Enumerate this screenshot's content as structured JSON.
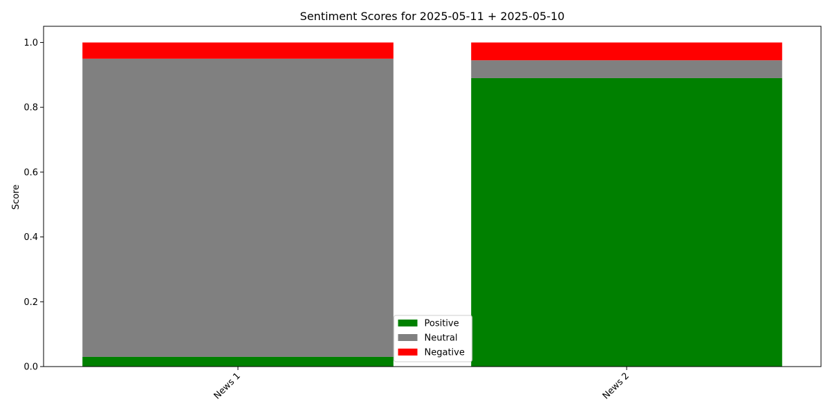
{
  "chart_data": {
    "type": "bar",
    "stacked": true,
    "title": "Sentiment Scores for 2025-05-11 + 2025-05-10",
    "xlabel": "",
    "ylabel": "Score",
    "categories": [
      "News 1",
      "News 2"
    ],
    "ylim": [
      0,
      1.05
    ],
    "yticks": [
      "0.0",
      "0.2",
      "0.4",
      "0.6",
      "0.8",
      "1.0"
    ],
    "grid": false,
    "legend_position": "bottom-center",
    "series": [
      {
        "name": "Positive",
        "color": "#008000",
        "values": [
          0.03,
          0.89
        ]
      },
      {
        "name": "Neutral",
        "color": "#808080",
        "values": [
          0.92,
          0.055
        ]
      },
      {
        "name": "Negative",
        "color": "#ff0000",
        "values": [
          0.05,
          0.055
        ]
      }
    ]
  }
}
